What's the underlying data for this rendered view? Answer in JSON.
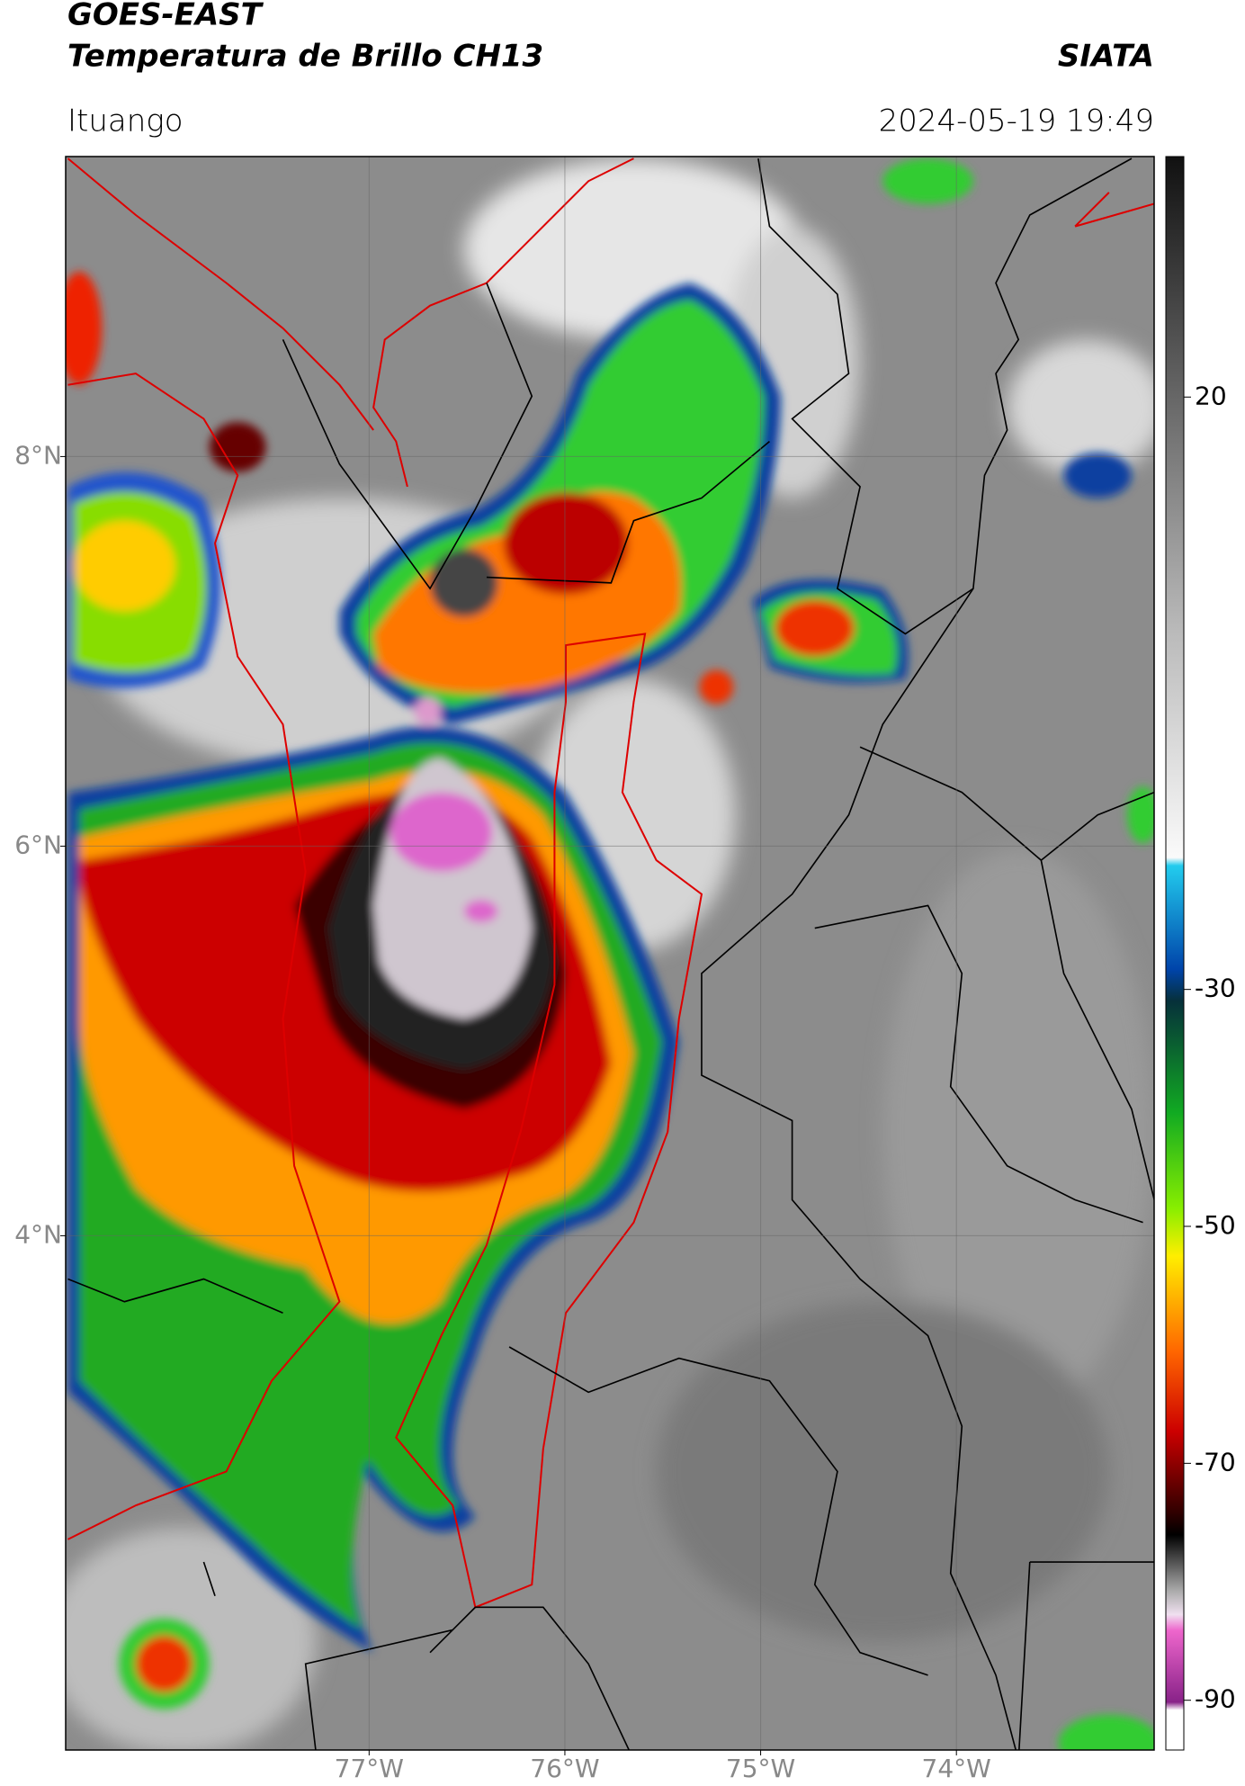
{
  "header": {
    "title_line1": "GOES-EAST",
    "title_line2": "Temperatura de Brillo CH13",
    "agency": "SIATA",
    "location": "Ituango",
    "datetime": "2024-05-19 19:49"
  },
  "map": {
    "latlim": [
      1.36,
      9.54
    ],
    "lonlim": [
      -78.55,
      -72.99
    ],
    "lat_ticks": [
      {
        "value": 8,
        "label": "8°N"
      },
      {
        "value": 6,
        "label": "6°N"
      },
      {
        "value": 4,
        "label": "4°N"
      }
    ],
    "lon_ticks": [
      {
        "value": -77,
        "label": "77°W"
      },
      {
        "value": -76,
        "label": "76°W"
      },
      {
        "value": -75,
        "label": "75°W"
      },
      {
        "value": -74,
        "label": "74°W"
      }
    ],
    "grid": true
  },
  "colorbar": {
    "lim": [
      -94.2,
      40.3
    ],
    "ticks": [
      20,
      -30,
      -50,
      -70,
      -90
    ]
  }
}
